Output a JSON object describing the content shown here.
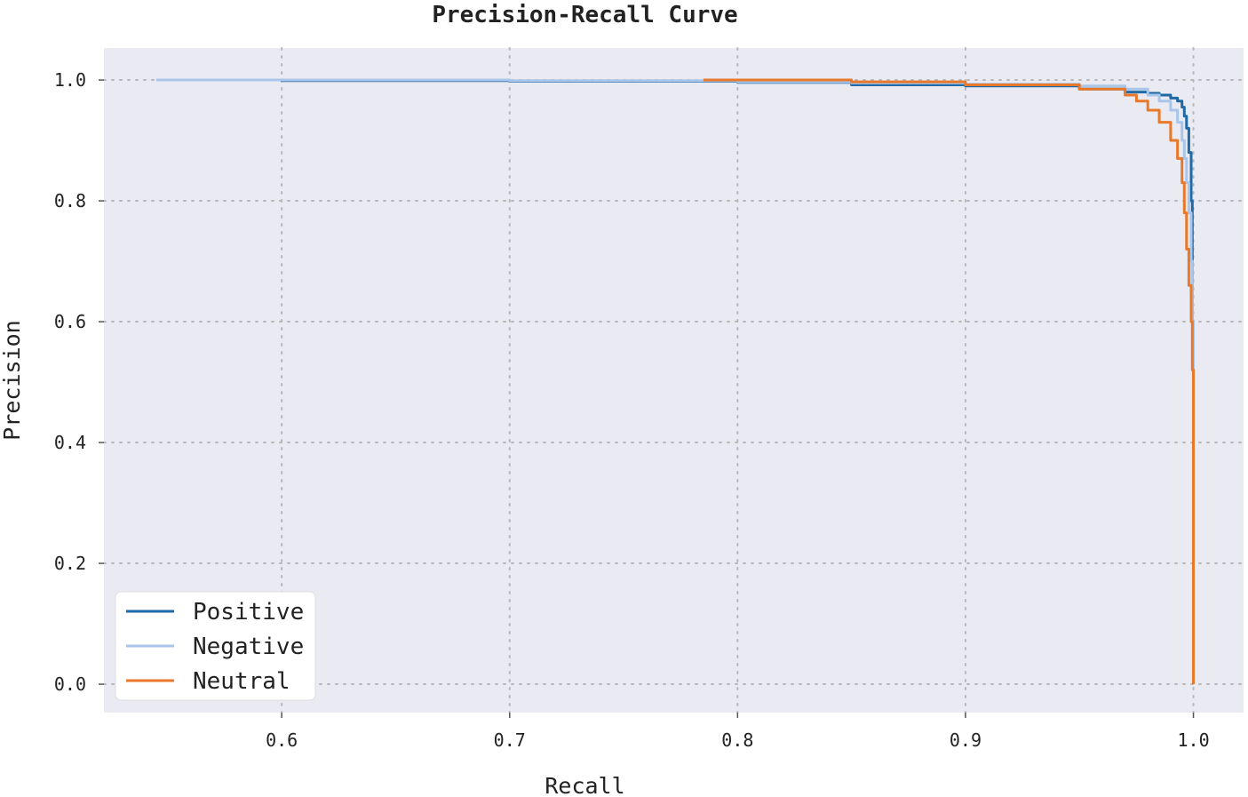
{
  "chart_data": {
    "type": "line",
    "title": "Precision-Recall Curve",
    "xlabel": "Recall",
    "ylabel": "Precision",
    "xlim": [
      0.522,
      1.022
    ],
    "ylim": [
      -0.047,
      1.053
    ],
    "xticks": [
      0.6,
      0.7,
      0.8,
      0.9,
      1.0
    ],
    "xtick_labels": [
      "0.6",
      "0.7",
      "0.8",
      "0.9",
      "1.0"
    ],
    "yticks": [
      0.0,
      0.2,
      0.4,
      0.6,
      0.8,
      1.0
    ],
    "ytick_labels": [
      "0.0",
      "0.2",
      "0.4",
      "0.6",
      "0.8",
      "1.0"
    ],
    "grid": true,
    "legend_position": "lower-left",
    "colors": {
      "plot_background": "#eaeaf2",
      "grid": "#b8b8b8"
    },
    "series": [
      {
        "name": "Positive",
        "color": "#1f6aa5",
        "x": [
          0.545,
          0.6,
          0.7,
          0.8,
          0.85,
          0.9,
          0.95,
          0.97,
          0.98,
          0.985,
          0.99,
          0.993,
          0.995,
          0.996,
          0.997,
          0.998,
          0.999,
          0.9995,
          1.0,
          1.0
        ],
        "y": [
          1.0,
          0.999,
          0.998,
          0.996,
          0.992,
          0.99,
          0.985,
          0.98,
          0.978,
          0.975,
          0.97,
          0.965,
          0.955,
          0.94,
          0.92,
          0.88,
          0.8,
          0.6,
          0.52,
          0.0
        ]
      },
      {
        "name": "Negative",
        "color": "#a9c6ea",
        "x": [
          0.545,
          0.6,
          0.7,
          0.8,
          0.85,
          0.9,
          0.95,
          0.97,
          0.98,
          0.985,
          0.99,
          0.993,
          0.995,
          0.996,
          0.997,
          0.998,
          0.999,
          0.9995,
          1.0
        ],
        "y": [
          1.0,
          1.0,
          0.999,
          0.997,
          0.995,
          0.993,
          0.99,
          0.985,
          0.975,
          0.965,
          0.95,
          0.93,
          0.9,
          0.87,
          0.83,
          0.78,
          0.7,
          0.6,
          0.48
        ]
      },
      {
        "name": "Neutral",
        "color": "#e8782a",
        "x": [
          0.785,
          0.8,
          0.85,
          0.9,
          0.95,
          0.97,
          0.975,
          0.98,
          0.985,
          0.99,
          0.993,
          0.995,
          0.996,
          0.997,
          0.998,
          0.999,
          0.9995,
          1.0,
          1.0
        ],
        "y": [
          1.0,
          1.0,
          0.997,
          0.992,
          0.985,
          0.975,
          0.965,
          0.95,
          0.93,
          0.9,
          0.87,
          0.83,
          0.78,
          0.72,
          0.66,
          0.6,
          0.52,
          0.45,
          0.0
        ]
      }
    ]
  }
}
